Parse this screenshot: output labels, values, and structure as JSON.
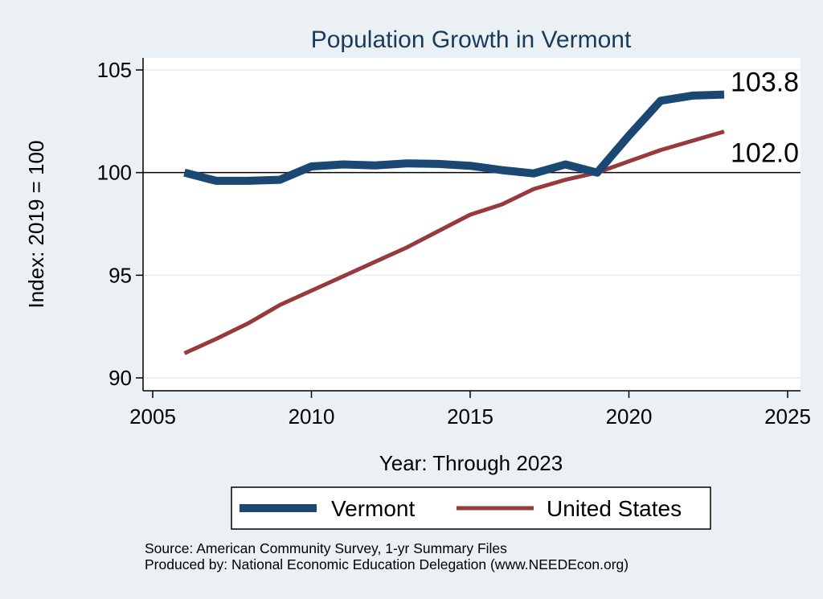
{
  "chart_data": {
    "type": "line",
    "title": "Population Growth in Vermont",
    "xlabel": "Year: Through 2023",
    "ylabel": "Index: 2019 = 100",
    "xlim": [
      2005,
      2025
    ],
    "ylim": [
      90,
      105
    ],
    "xticks": [
      2005,
      2010,
      2015,
      2020,
      2025
    ],
    "yticks": [
      90,
      95,
      100,
      105
    ],
    "reference_line": 100,
    "x": [
      2006,
      2007,
      2008,
      2009,
      2010,
      2011,
      2012,
      2013,
      2014,
      2015,
      2016,
      2017,
      2018,
      2019,
      2020,
      2021,
      2022,
      2023
    ],
    "series": [
      {
        "name": "Vermont",
        "color": "#1a4872",
        "values": [
          100.0,
          99.6,
          99.6,
          99.65,
          100.3,
          100.4,
          100.35,
          100.45,
          100.42,
          100.33,
          100.12,
          99.96,
          100.4,
          100.0,
          101.8,
          103.5,
          103.75,
          103.8
        ],
        "end_label": "103.8"
      },
      {
        "name": "United States",
        "color": "#963a3e",
        "values": [
          91.2,
          91.9,
          92.65,
          93.55,
          94.25,
          94.95,
          95.65,
          96.35,
          97.15,
          97.95,
          98.45,
          99.2,
          99.65,
          100.0,
          100.55,
          101.1,
          101.55,
          102.0
        ],
        "end_label": "102.0"
      }
    ],
    "legend": {
      "position": "bottom"
    }
  },
  "footer": {
    "source": "Source: American Community Survey, 1-yr Summary Files",
    "produced_by": "Produced by: National Economic Education Delegation (www.NEEDEcon.org)"
  }
}
